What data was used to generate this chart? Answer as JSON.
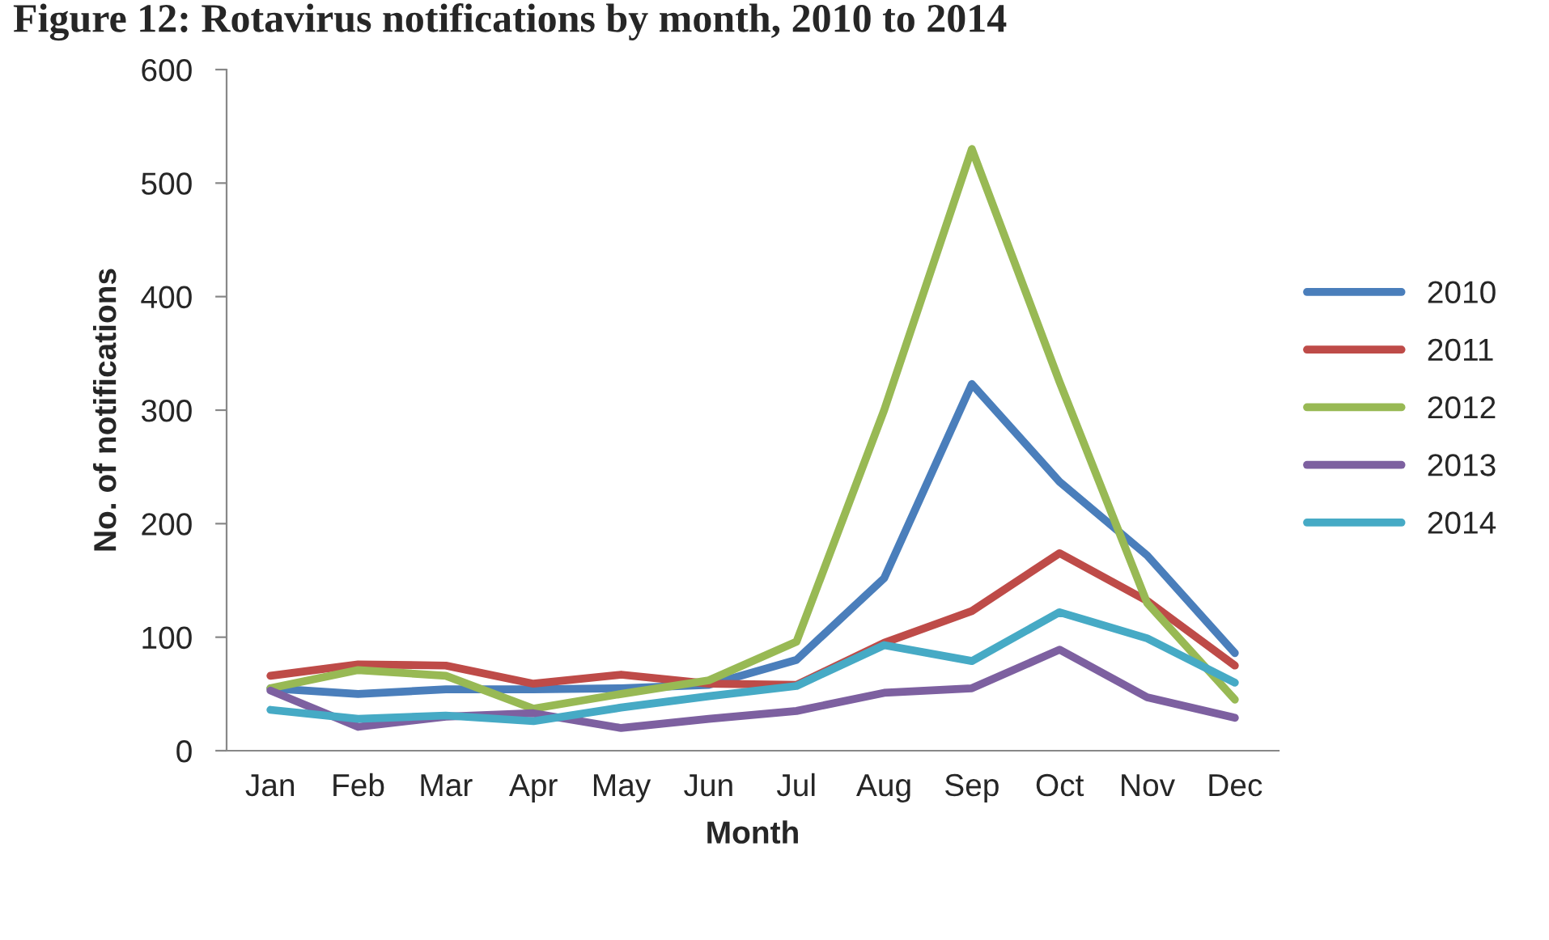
{
  "chart_data": {
    "type": "line",
    "title": "Figure 12: Rotavirus notifications by month, 2010 to 2014",
    "xlabel": "Month",
    "ylabel": "No. of notifications",
    "categories": [
      "Jan",
      "Feb",
      "Mar",
      "Apr",
      "May",
      "Jun",
      "Jul",
      "Aug",
      "Sep",
      "Oct",
      "Nov",
      "Dec"
    ],
    "series": [
      {
        "name": "2010",
        "color": "#4a7ebb",
        "values": [
          55,
          50,
          54,
          54,
          55,
          58,
          80,
          152,
          323,
          237,
          172,
          86
        ]
      },
      {
        "name": "2011",
        "color": "#be4b48",
        "values": [
          66,
          76,
          75,
          59,
          67,
          59,
          58,
          95,
          123,
          174,
          132,
          75
        ]
      },
      {
        "name": "2012",
        "color": "#98b954",
        "values": [
          55,
          71,
          66,
          37,
          50,
          62,
          96,
          300,
          530,
          325,
          130,
          45
        ]
      },
      {
        "name": "2013",
        "color": "#7d60a0",
        "values": [
          53,
          21,
          30,
          33,
          20,
          28,
          35,
          51,
          55,
          89,
          47,
          29
        ]
      },
      {
        "name": "2014",
        "color": "#46aac5",
        "values": [
          36,
          28,
          31,
          26,
          38,
          48,
          57,
          93,
          79,
          122,
          99,
          60
        ]
      }
    ],
    "ylim": [
      0,
      600
    ],
    "yticks": [
      0,
      100,
      200,
      300,
      400,
      500,
      600
    ],
    "grid": false,
    "legend": "right",
    "marker": "none",
    "line_style": "solid"
  }
}
